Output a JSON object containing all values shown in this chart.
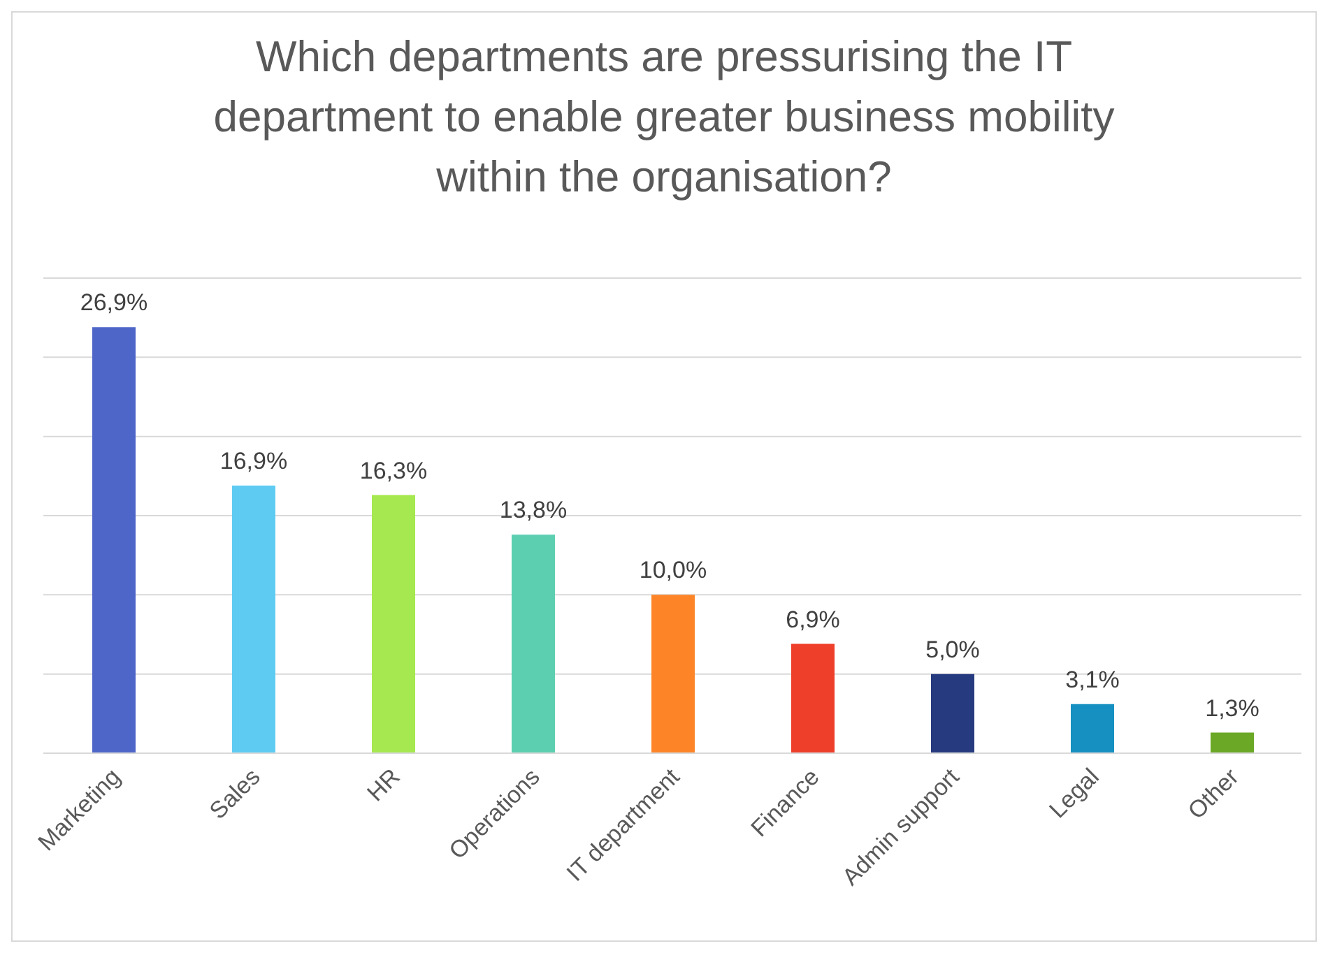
{
  "chart_data": {
    "type": "bar",
    "title": "Which departments are pressurising the IT department to enable greater business mobility within the organisation?",
    "categories": [
      "Marketing",
      "Sales",
      "HR",
      "Operations",
      "IT department",
      "Finance",
      "Admin support",
      "Legal",
      "Other"
    ],
    "values": [
      26.9,
      16.9,
      16.3,
      13.8,
      10.0,
      6.9,
      5.0,
      3.1,
      1.3
    ],
    "colors": [
      "#4f66c9",
      "#5ecbf3",
      "#a6e84f",
      "#5dcfb1",
      "#fd8528",
      "#ee3f2b",
      "#253a7f",
      "#1590c1",
      "#6aa825"
    ],
    "value_labels": [
      "26,9%",
      "16,9%",
      "16,3%",
      "13,8%",
      "10,0%",
      "6,9%",
      "5,0%",
      "3,1%",
      "1,3%"
    ],
    "ylim": [
      0,
      30
    ],
    "yticks": [
      {
        "value": 0,
        "label": null
      },
      {
        "value": 5,
        "label": null
      },
      {
        "value": 10,
        "label": null
      },
      {
        "value": 15,
        "label": null
      },
      {
        "value": 20,
        "label": null
      },
      {
        "value": 25,
        "label": null
      },
      {
        "value": 30,
        "label": null
      }
    ],
    "tick_labels": "x",
    "grid": "y"
  }
}
